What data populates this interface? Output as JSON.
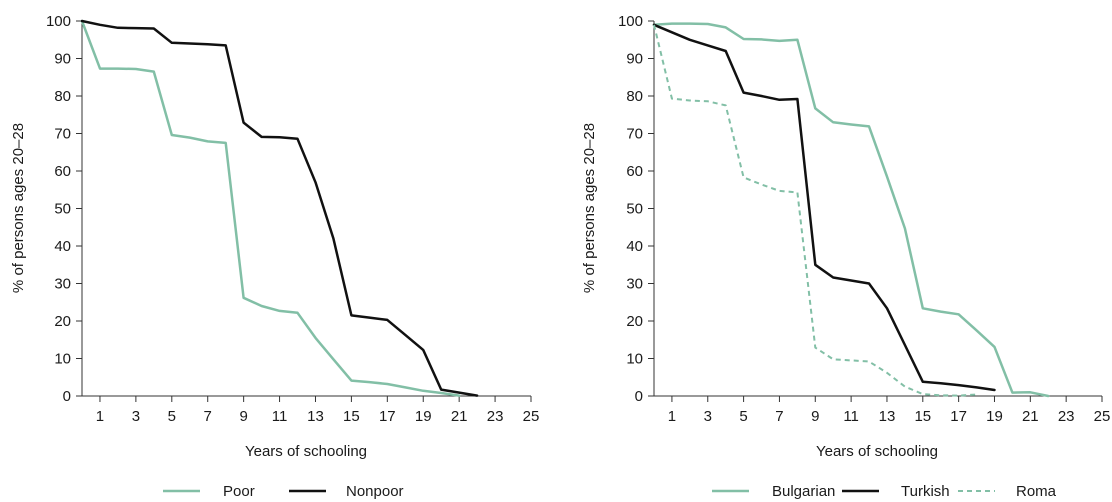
{
  "colors": {
    "green": "#82bfa6",
    "black": "#111111",
    "axis": "#333333"
  },
  "chart_data": [
    {
      "type": "line",
      "title": "",
      "xlabel": "Years of schooling",
      "ylabel": "% of persons ages 20–28",
      "xlim": [
        0,
        25
      ],
      "ylim": [
        0,
        100
      ],
      "xticks": [
        1,
        3,
        5,
        7,
        9,
        11,
        13,
        15,
        17,
        19,
        21,
        23,
        25
      ],
      "yticks": [
        0,
        10,
        20,
        30,
        40,
        50,
        60,
        70,
        80,
        90,
        100
      ],
      "grid": false,
      "legend_position": "bottom",
      "series": [
        {
          "name": "Poor",
          "color": "#82bfa6",
          "style": "solid",
          "x": [
            0,
            1,
            2,
            3,
            4,
            5,
            6,
            7,
            8,
            9,
            10,
            11,
            12,
            13,
            14,
            15,
            16,
            17,
            18,
            19,
            20,
            21
          ],
          "y": [
            100,
            87.3,
            87.3,
            87.2,
            86.5,
            69.6,
            68.9,
            67.9,
            67.5,
            26.2,
            24,
            22.7,
            22.2,
            15.5,
            9.8,
            4.1,
            3.7,
            3.2,
            2.3,
            1.4,
            0.8,
            0.1
          ]
        },
        {
          "name": "Nonpoor",
          "color": "#111111",
          "style": "solid",
          "x": [
            0,
            1,
            2,
            3,
            4,
            5,
            6,
            7,
            8,
            9,
            10,
            11,
            12,
            13,
            14,
            15,
            16,
            17,
            18,
            19,
            20,
            21,
            22
          ],
          "y": [
            100,
            99,
            98.2,
            98.1,
            98,
            94.2,
            94,
            93.8,
            93.5,
            72.9,
            69.1,
            69,
            68.6,
            57,
            42,
            21.5,
            20.9,
            20.3,
            16.3,
            12.3,
            1.7,
            0.9,
            0.1
          ]
        }
      ]
    },
    {
      "type": "line",
      "title": "",
      "xlabel": "Years of schooling",
      "ylabel": "% of persons ages 20–28",
      "xlim": [
        0,
        25
      ],
      "ylim": [
        0,
        100
      ],
      "xticks": [
        1,
        3,
        5,
        7,
        9,
        11,
        13,
        15,
        17,
        19,
        21,
        23,
        25
      ],
      "yticks": [
        0,
        10,
        20,
        30,
        40,
        50,
        60,
        70,
        80,
        90,
        100
      ],
      "grid": false,
      "legend_position": "bottom",
      "series": [
        {
          "name": "Bulgarian",
          "color": "#82bfa6",
          "style": "solid",
          "x": [
            0,
            1,
            2,
            3,
            4,
            5,
            6,
            7,
            8,
            9,
            10,
            11,
            12,
            13,
            14,
            15,
            16,
            17,
            18,
            19,
            20,
            21,
            22
          ],
          "y": [
            99,
            99.3,
            99.3,
            99.2,
            98.3,
            95.2,
            95.1,
            94.7,
            95,
            76.7,
            73,
            72.4,
            71.9,
            58.5,
            44.7,
            23.4,
            22.5,
            21.8,
            17.5,
            13.1,
            0.9,
            1,
            0
          ]
        },
        {
          "name": "Turkish",
          "color": "#111111",
          "style": "solid",
          "x": [
            0,
            1,
            2,
            3,
            4,
            5,
            6,
            7,
            8,
            9,
            10,
            11,
            12,
            13,
            14,
            15,
            16,
            17,
            18,
            19
          ],
          "y": [
            99,
            97,
            95,
            93.5,
            92,
            80.9,
            80,
            79,
            79.2,
            35,
            31.6,
            30.8,
            30,
            23.4,
            13.6,
            3.8,
            3.4,
            2.9,
            2.3,
            1.6
          ]
        },
        {
          "name": "Roma",
          "color": "#82bfa6",
          "style": "dashed",
          "x": [
            0,
            1,
            2,
            3,
            4,
            5,
            6,
            7,
            8,
            9,
            10,
            11,
            12,
            13,
            14,
            15,
            16,
            17,
            18
          ],
          "y": [
            99,
            79.3,
            78.8,
            78.6,
            77.5,
            58.3,
            56.4,
            54.7,
            54.3,
            12.9,
            9.8,
            9.5,
            9.2,
            6.2,
            2.5,
            0.5,
            0.2,
            0.1,
            0.4
          ]
        }
      ]
    }
  ]
}
